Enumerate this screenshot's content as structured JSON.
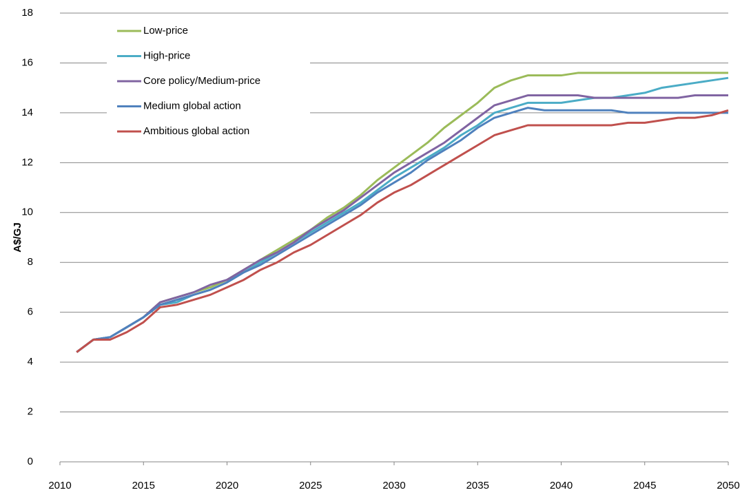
{
  "chart_data": {
    "type": "line",
    "y_label": "A$/GJ",
    "x": [
      2011,
      2012,
      2013,
      2014,
      2015,
      2016,
      2017,
      2018,
      2019,
      2020,
      2021,
      2022,
      2023,
      2024,
      2025,
      2026,
      2027,
      2028,
      2029,
      2030,
      2031,
      2032,
      2033,
      2034,
      2035,
      2036,
      2037,
      2038,
      2039,
      2040,
      2041,
      2042,
      2043,
      2044,
      2045,
      2046,
      2047,
      2048,
      2049,
      2050
    ],
    "xlim": [
      2010,
      2050
    ],
    "xticks": [
      2010,
      2015,
      2020,
      2025,
      2030,
      2035,
      2040,
      2045,
      2050
    ],
    "ylim": [
      0,
      18
    ],
    "yticks": [
      0,
      2,
      4,
      6,
      8,
      10,
      12,
      14,
      16,
      18
    ],
    "grid": true,
    "legend": "upper left",
    "series": [
      {
        "name": "Low-price",
        "color": "#9bbb59",
        "values": [
          4.4,
          4.9,
          5.0,
          5.4,
          5.8,
          6.4,
          6.6,
          6.8,
          7.0,
          7.3,
          7.7,
          8.1,
          8.5,
          8.9,
          9.3,
          9.8,
          10.2,
          10.7,
          11.3,
          11.8,
          12.3,
          12.8,
          13.4,
          13.9,
          14.4,
          15.0,
          15.3,
          15.5,
          15.5,
          15.5,
          15.6,
          15.6,
          15.6,
          15.6,
          15.6,
          15.6,
          15.6,
          15.6,
          15.6,
          15.6
        ]
      },
      {
        "name": "High-price",
        "color": "#4bacc6",
        "values": [
          4.4,
          4.9,
          5.0,
          5.4,
          5.8,
          6.3,
          6.4,
          6.7,
          6.9,
          7.2,
          7.6,
          8.0,
          8.4,
          8.8,
          9.2,
          9.6,
          10.0,
          10.4,
          10.9,
          11.4,
          11.8,
          12.2,
          12.6,
          13.1,
          13.5,
          14.0,
          14.2,
          14.4,
          14.4,
          14.4,
          14.5,
          14.6,
          14.6,
          14.7,
          14.8,
          15.0,
          15.1,
          15.2,
          15.3,
          15.4
        ]
      },
      {
        "name": "Core policy/Medium-price",
        "color": "#8064a2",
        "values": [
          4.4,
          4.9,
          5.0,
          5.4,
          5.8,
          6.4,
          6.6,
          6.8,
          7.1,
          7.3,
          7.7,
          8.1,
          8.4,
          8.8,
          9.3,
          9.7,
          10.1,
          10.6,
          11.1,
          11.6,
          12.0,
          12.4,
          12.8,
          13.3,
          13.8,
          14.3,
          14.5,
          14.7,
          14.7,
          14.7,
          14.7,
          14.6,
          14.6,
          14.6,
          14.6,
          14.6,
          14.6,
          14.7,
          14.7,
          14.7
        ]
      },
      {
        "name": "Medium global action",
        "color": "#4f81bd",
        "values": [
          4.4,
          4.9,
          5.0,
          5.4,
          5.8,
          6.3,
          6.5,
          6.7,
          6.9,
          7.2,
          7.6,
          7.9,
          8.3,
          8.7,
          9.1,
          9.5,
          9.9,
          10.3,
          10.8,
          11.2,
          11.6,
          12.1,
          12.5,
          12.9,
          13.4,
          13.8,
          14.0,
          14.2,
          14.1,
          14.1,
          14.1,
          14.1,
          14.1,
          14.0,
          14.0,
          14.0,
          14.0,
          14.0,
          14.0,
          14.0
        ]
      },
      {
        "name": "Ambitious global action",
        "color": "#c0504d",
        "values": [
          4.4,
          4.9,
          4.9,
          5.2,
          5.6,
          6.2,
          6.3,
          6.5,
          6.7,
          7.0,
          7.3,
          7.7,
          8.0,
          8.4,
          8.7,
          9.1,
          9.5,
          9.9,
          10.4,
          10.8,
          11.1,
          11.5,
          11.9,
          12.3,
          12.7,
          13.1,
          13.3,
          13.5,
          13.5,
          13.5,
          13.5,
          13.5,
          13.5,
          13.6,
          13.6,
          13.7,
          13.8,
          13.8,
          13.9,
          14.1
        ]
      }
    ]
  }
}
